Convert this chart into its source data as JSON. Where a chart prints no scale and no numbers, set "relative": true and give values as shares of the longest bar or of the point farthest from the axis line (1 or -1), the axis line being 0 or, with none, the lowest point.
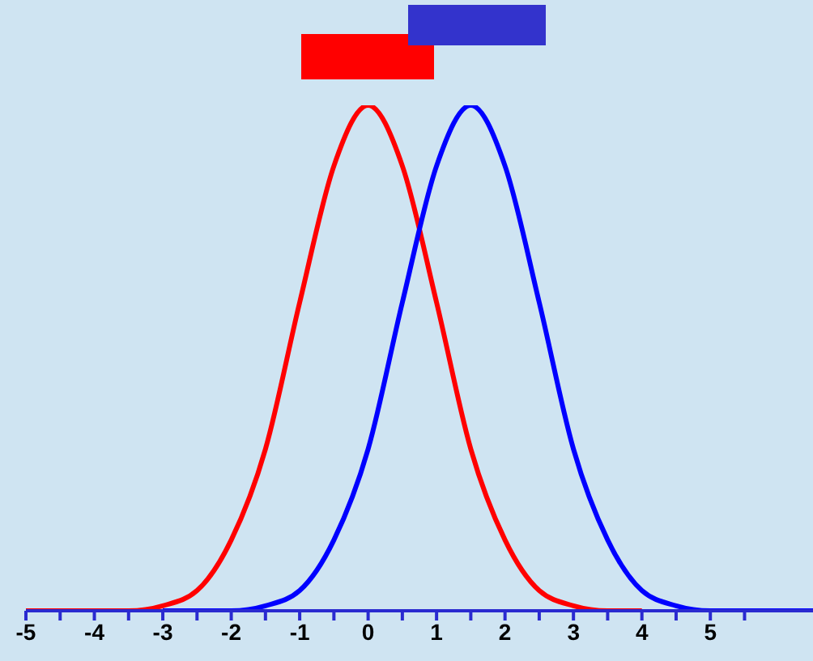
{
  "chart_data": {
    "type": "line",
    "relative": true,
    "series": [
      {
        "color": "#ff0000",
        "x": [
          -5,
          -4.5,
          -4,
          -3.5,
          -3,
          -2.5,
          -2,
          -1.5,
          -1,
          -0.5,
          0,
          0.5,
          1,
          1.5,
          2,
          2.5,
          3,
          3.5,
          4
        ],
        "values": [
          0,
          0,
          0,
          0,
          0.01,
          0.04,
          0.14,
          0.32,
          0.61,
          0.88,
          1,
          0.88,
          0.61,
          0.32,
          0.14,
          0.04,
          0.01,
          0,
          0
        ]
      },
      {
        "color": "#0000ff",
        "x": [
          -3,
          -2.5,
          -2,
          -1.5,
          -1,
          -0.5,
          0,
          0.5,
          1,
          1.5,
          2,
          2.5,
          3,
          3.5,
          4,
          4.5,
          5,
          5.5,
          6,
          6.5
        ],
        "values": [
          0,
          0,
          0,
          0.01,
          0.04,
          0.14,
          0.32,
          0.61,
          0.88,
          1,
          0.88,
          0.61,
          0.32,
          0.14,
          0.04,
          0.01,
          0,
          0,
          0,
          0
        ]
      }
    ],
    "xlim": [
      -5,
      6.5
    ],
    "xticks": [
      -5,
      {
        "value": -4.5,
        "label": null
      },
      -4,
      {
        "value": -3.5,
        "label": null
      },
      -3,
      {
        "value": -2.5,
        "label": null
      },
      -2,
      {
        "value": -1.5,
        "label": null
      },
      -1,
      {
        "value": -0.5,
        "label": null
      },
      0,
      {
        "value": 0.5,
        "label": null
      },
      1,
      {
        "value": 1.5,
        "label": null
      },
      2,
      {
        "value": 2.5,
        "label": null
      },
      3,
      {
        "value": 3.5,
        "label": null
      },
      4,
      {
        "value": 4.5,
        "label": null
      },
      5,
      {
        "value": 5.5,
        "label": null
      }
    ]
  }
}
